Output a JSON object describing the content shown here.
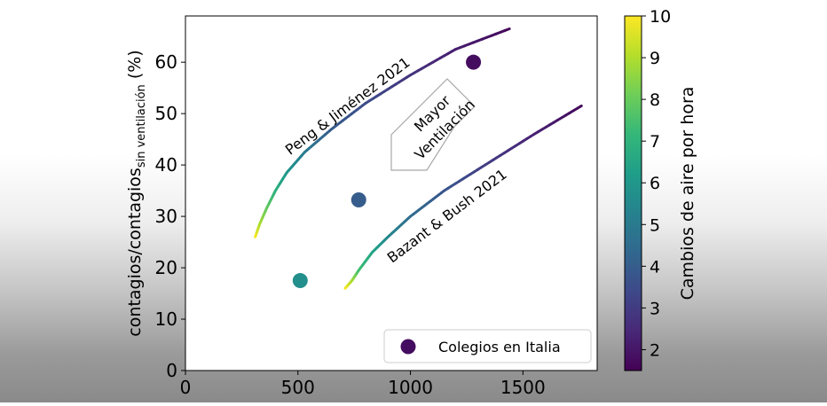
{
  "chart_data": {
    "type": "scatter",
    "xlim": [
      0,
      1830
    ],
    "ylim": [
      0,
      69
    ],
    "x_ticks": [
      0,
      500,
      1000,
      1500
    ],
    "y_ticks": [
      0,
      10,
      20,
      30,
      40,
      50,
      60
    ],
    "ylabel_main": "contagios/contagios",
    "ylabel_sub": "sin ventilación",
    "ylabel_suffix": " (%)",
    "grid": false,
    "colorbar": {
      "label": "Cambios de aire por hora",
      "range": [
        1.5,
        10
      ],
      "ticks": [
        2,
        3,
        4,
        5,
        6,
        7,
        8,
        9,
        10
      ],
      "colormap": [
        "#440154",
        "#482878",
        "#3e4989",
        "#31688e",
        "#26828e",
        "#1f9e89",
        "#35b779",
        "#6ece58",
        "#b5de2b",
        "#fde725"
      ]
    },
    "series": [
      {
        "name": "Peng & Jiménez 2021",
        "kind": "line",
        "points": [
          [
            310,
            26,
            10
          ],
          [
            330,
            28.5,
            9
          ],
          [
            360,
            31.5,
            8
          ],
          [
            400,
            35,
            7
          ],
          [
            450,
            38.5,
            6
          ],
          [
            530,
            42.5,
            5
          ],
          [
            650,
            47,
            4
          ],
          [
            800,
            52,
            3.5
          ],
          [
            1000,
            57.5,
            2.8
          ],
          [
            1200,
            62.5,
            2.2
          ],
          [
            1440,
            66.5,
            1.7
          ]
        ]
      },
      {
        "name": "Bazant & Bush 2021",
        "kind": "line",
        "points": [
          [
            710,
            16,
            10
          ],
          [
            740,
            17.5,
            9
          ],
          [
            770,
            19.5,
            7.5
          ],
          [
            830,
            23,
            6.5
          ],
          [
            900,
            26,
            5.5
          ],
          [
            1000,
            30,
            4.5
          ],
          [
            1150,
            35,
            3.8
          ],
          [
            1350,
            40.5,
            3
          ],
          [
            1550,
            46,
            2.3
          ],
          [
            1760,
            51.5,
            1.7
          ]
        ]
      },
      {
        "name": "Colegios en Italia",
        "kind": "scatter",
        "points": [
          [
            510,
            17.5,
            5.7
          ],
          [
            770,
            33.2,
            4.0
          ],
          [
            1280,
            60,
            1.8
          ]
        ]
      }
    ],
    "annotations": {
      "arrow_text_line1": "Mayor",
      "arrow_text_line2": "Ventilación"
    },
    "legend": {
      "placement": "bottom-right",
      "label": "Colegios en Italia"
    }
  }
}
